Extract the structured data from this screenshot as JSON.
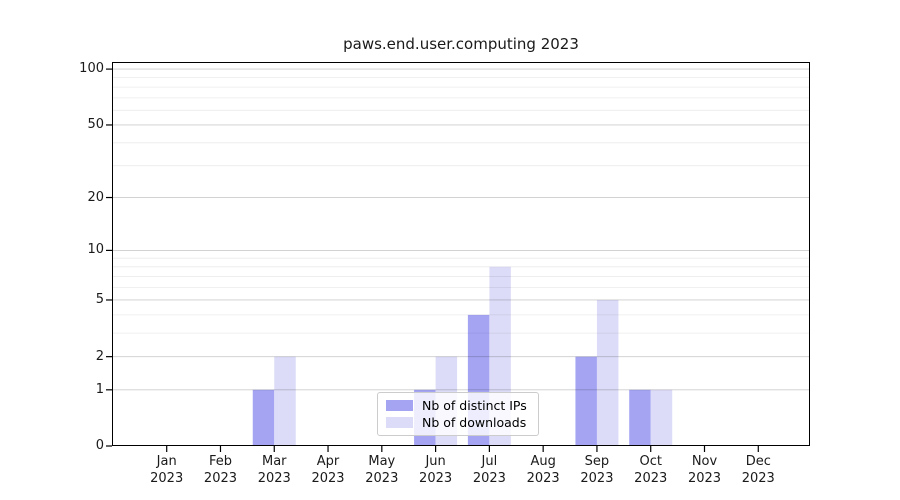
{
  "chart_data": {
    "type": "bar",
    "title": "paws.end.user.computing 2023",
    "categories": [
      "Jan",
      "Feb",
      "Mar",
      "Apr",
      "May",
      "Jun",
      "Jul",
      "Aug",
      "Sep",
      "Oct",
      "Nov",
      "Dec"
    ],
    "category_year_labels": [
      "2023",
      "2023",
      "2023",
      "2023",
      "2023",
      "2023",
      "2023",
      "2023",
      "2023",
      "2023",
      "2023",
      "2023"
    ],
    "series": [
      {
        "name": "Nb of distinct IPs",
        "color": "#a4a4f3",
        "values": [
          0,
          0,
          1,
          0,
          0,
          1,
          4,
          0,
          2,
          1,
          0,
          0
        ]
      },
      {
        "name": "Nb of downloads",
        "color": "#dcdcf8",
        "values": [
          0,
          0,
          2,
          0,
          0,
          2,
          8,
          0,
          5,
          1,
          0,
          0
        ]
      }
    ],
    "yscale": "log1p",
    "major_yticks": [
      0,
      1,
      2,
      5,
      10,
      20,
      50,
      100
    ],
    "minor_yticks": [
      3,
      4,
      6,
      7,
      8,
      9,
      30,
      40,
      60,
      70,
      80,
      90
    ],
    "ylim": [
      0,
      110
    ],
    "grid": true,
    "legend_position": "lower center"
  },
  "colors": {
    "axis": "#000000",
    "grid_major": "rgba(0,0,0,0.20)",
    "grid_minor": "rgba(0,0,0,0.08)",
    "background": "#ffffff"
  }
}
